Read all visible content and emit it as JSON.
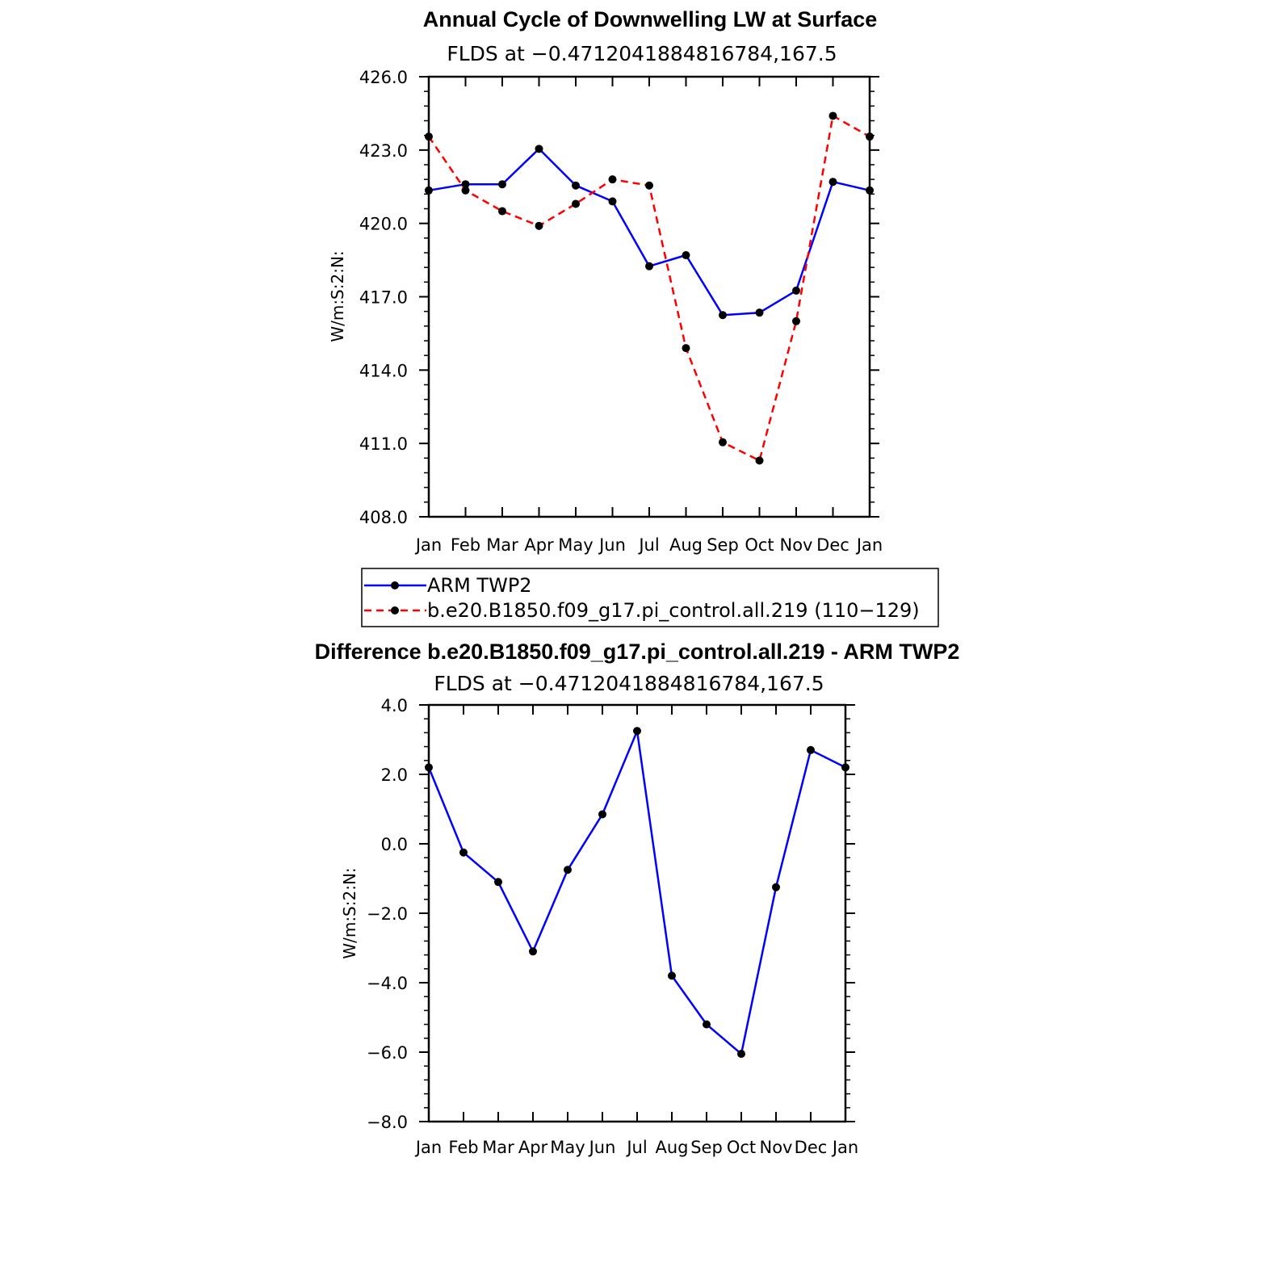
{
  "chart_data": [
    {
      "type": "line",
      "title": "Annual Cycle of Downwelling LW at Surface",
      "subtitle": "FLDS at −0.4712041884816784,167.5",
      "ylabel": "W/m:S:2:N:",
      "xlabel": "",
      "categories": [
        "Jan",
        "Feb",
        "Mar",
        "Apr",
        "May",
        "Jun",
        "Jul",
        "Aug",
        "Sep",
        "Oct",
        "Nov",
        "Dec",
        "Jan"
      ],
      "ylim": [
        408.0,
        426.0
      ],
      "yticks": [
        "426.0",
        "423.0",
        "420.0",
        "417.0",
        "414.0",
        "411.0",
        "408.0"
      ],
      "grid": false,
      "legend_position": "bottom",
      "series": [
        {
          "name": "ARM TWP2",
          "color": "#0000ff",
          "dash": "solid",
          "values": [
            421.35,
            421.6,
            421.6,
            423.05,
            421.55,
            420.9,
            418.25,
            418.7,
            416.25,
            416.35,
            417.25,
            421.7,
            421.35
          ]
        },
        {
          "name": "b.e20.B1850.f09_g17.pi_control.all.219 (110−129)",
          "color": "#ff0000",
          "dash": "dashed",
          "values": [
            423.55,
            421.35,
            420.5,
            419.9,
            420.8,
            421.8,
            421.55,
            414.9,
            411.05,
            410.3,
            416.0,
            424.4,
            423.55
          ]
        }
      ]
    },
    {
      "type": "line",
      "title": "Difference b.e20.B1850.f09_g17.pi_control.all.219 - ARM TWP2",
      "subtitle": "FLDS at −0.4712041884816784,167.5",
      "ylabel": "W/m:S:2:N:",
      "xlabel": "",
      "categories": [
        "Jan",
        "Feb",
        "Mar",
        "Apr",
        "May",
        "Jun",
        "Jul",
        "Aug",
        "Sep",
        "Oct",
        "Nov",
        "Dec",
        "Jan"
      ],
      "ylim": [
        -8.0,
        4.0
      ],
      "yticks": [
        "4.0",
        "2.0",
        "0.0",
        "−2.0",
        "−4.0",
        "−6.0",
        "−8.0"
      ],
      "grid": false,
      "series": [
        {
          "color": "#0000ff",
          "dash": "solid",
          "values": [
            2.2,
            -0.25,
            -1.1,
            -3.1,
            -0.75,
            0.85,
            3.25,
            -3.8,
            -5.2,
            -6.05,
            -1.25,
            2.7,
            2.2
          ]
        }
      ]
    }
  ]
}
